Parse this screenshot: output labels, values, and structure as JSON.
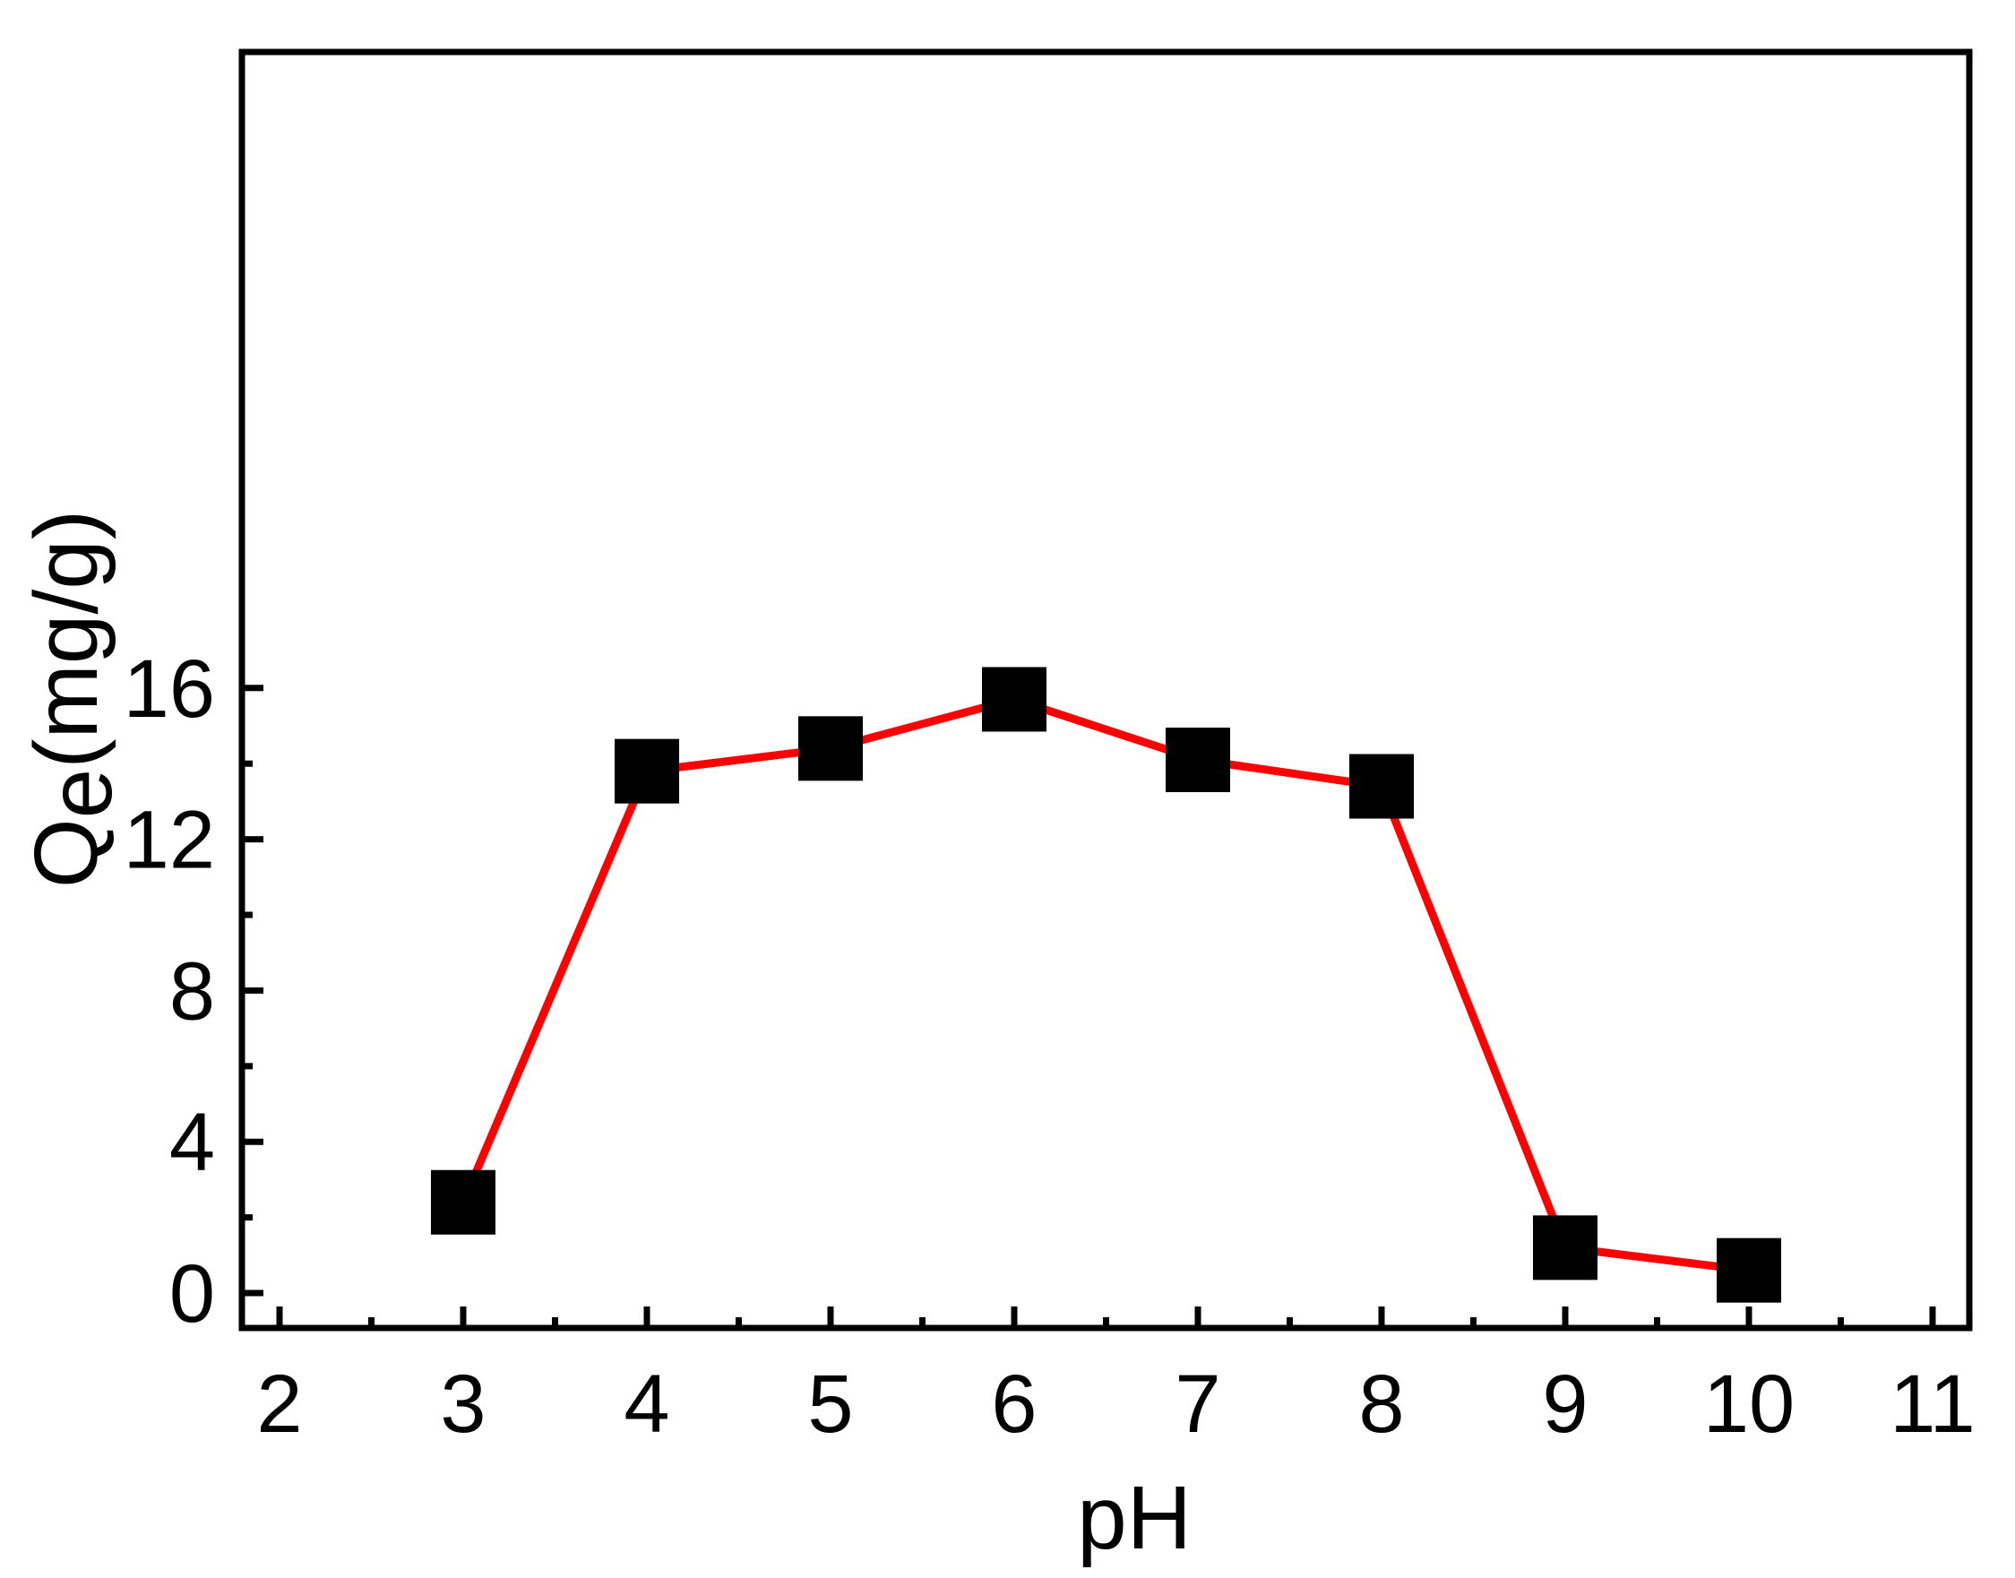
{
  "chart_data": {
    "type": "line",
    "title": "",
    "xlabel": "pH",
    "ylabel": {
      "main": "Q",
      "subscript": "e",
      "unit": "(mg/g)"
    },
    "xlim": [
      2,
      11
    ],
    "ylim": [
      0,
      16
    ],
    "xticks": [
      "2",
      "3",
      "4",
      "5",
      "6",
      "7",
      "8",
      "9",
      "10",
      "11"
    ],
    "yticks": [
      "0",
      "4",
      "8",
      "12",
      "16"
    ],
    "grid": false,
    "series": [
      {
        "x": [
          3,
          4,
          5,
          6,
          7,
          8,
          9,
          10
        ],
        "y": [
          2.4,
          13.8,
          14.4,
          15.7,
          14.1,
          13.4,
          1.2,
          0.6
        ],
        "line_color": "#ff0000",
        "marker": "square",
        "marker_color": "#000000"
      }
    ]
  }
}
